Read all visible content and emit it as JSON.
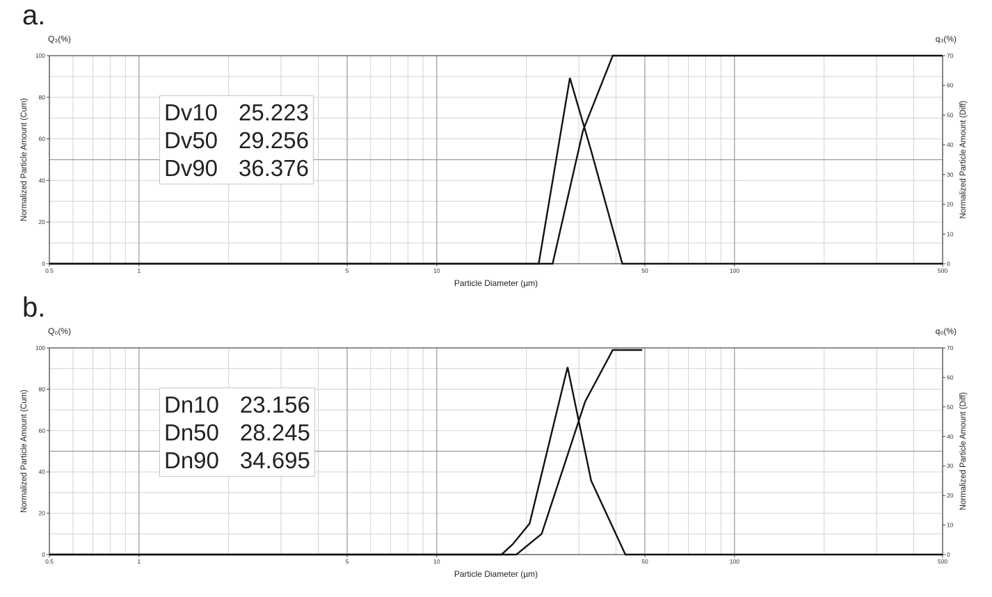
{
  "panels": [
    {
      "letter": "a.",
      "left_axis_label": "Q₃(%)",
      "right_axis_label": "q₃(%)",
      "stats": [
        {
          "name": "Dv10",
          "value": "25.223"
        },
        {
          "name": "Dv50",
          "value": "29.256"
        },
        {
          "name": "Dv90",
          "value": "36.376"
        }
      ]
    },
    {
      "letter": "b.",
      "left_axis_label": "Q₀(%)",
      "right_axis_label": "q₀(%)",
      "stats": [
        {
          "name": "Dn10",
          "value": "23.156"
        },
        {
          "name": "Dn50",
          "value": "28.245"
        },
        {
          "name": "Dn90",
          "value": "34.695"
        }
      ]
    }
  ],
  "chart_data": [
    {
      "type": "line",
      "xscale": "log",
      "xlim": [
        0.5,
        500
      ],
      "ylim": [
        0,
        100
      ],
      "y2lim": [
        0,
        70
      ],
      "xlabel": "Particle Diameter (µm)",
      "ylabel": "Normalized Particle Amount (Cum)",
      "y2label": "Normalized Particle Amount (Diff)",
      "xticks": [
        "0.5",
        "1",
        "5",
        "10",
        "50",
        "100",
        "500"
      ],
      "yticks": [
        "0",
        "20",
        "40",
        "60",
        "80",
        "100"
      ],
      "y2ticks": [
        "0",
        "10",
        "20",
        "30",
        "40",
        "50",
        "60",
        "70"
      ],
      "grid": true,
      "series": [
        {
          "axis": "y2",
          "x": [
            0.5,
            22.0,
            28.0,
            33.0,
            42.0,
            500
          ],
          "y": [
            0,
            0,
            62.5,
            38,
            0,
            0
          ]
        },
        {
          "axis": "y",
          "x": [
            0.5,
            24.5,
            31.0,
            39.0,
            500
          ],
          "y": [
            0,
            0,
            64,
            100,
            100
          ]
        }
      ]
    },
    {
      "type": "line",
      "xscale": "log",
      "xlim": [
        0.5,
        500
      ],
      "ylim": [
        0,
        100
      ],
      "y2lim": [
        0,
        70
      ],
      "xlabel": "Particle Diameter (µm)",
      "ylabel": "Normalized Particle Amount (Cum)",
      "y2label": "Normalized Particle Amount (Diff)",
      "xticks": [
        "0.5",
        "1",
        "5",
        "10",
        "50",
        "100",
        "500"
      ],
      "yticks": [
        "0",
        "20",
        "40",
        "60",
        "80",
        "100"
      ],
      "y2ticks": [
        "0",
        "10",
        "20",
        "30",
        "40",
        "50",
        "60",
        "70"
      ],
      "grid": true,
      "series": [
        {
          "axis": "y2",
          "x": [
            0.5,
            16.5,
            18.0,
            20.5,
            27.5,
            33.0,
            43.0,
            500
          ],
          "y": [
            0,
            0,
            3.5,
            10.5,
            63.5,
            25,
            0,
            0
          ]
        },
        {
          "axis": "y",
          "x": [
            0.5,
            18.5,
            22.5,
            31.5,
            39.0,
            49.0
          ],
          "y": [
            0,
            0,
            10,
            74,
            99,
            99
          ]
        }
      ]
    }
  ]
}
